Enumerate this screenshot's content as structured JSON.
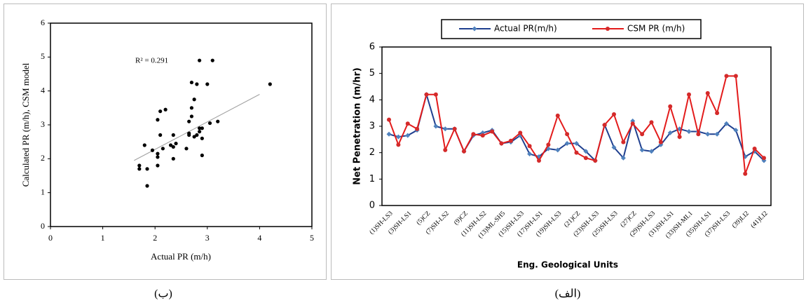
{
  "chart_data": [
    {
      "type": "scatter",
      "caption": "(ب)",
      "xlabel": "Actual PR (m/h)",
      "ylabel": "Calculated PR (m/h), CSM model",
      "annotation": "R² = 0.291",
      "color": "#000000",
      "x": [
        2.7,
        2.6,
        2.65,
        2.85,
        4.2,
        3.0,
        2.9,
        2.9,
        2.05,
        2.65,
        2.75,
        2.85,
        2.35,
        2.4,
        2.65,
        1.95,
        1.85,
        2.15,
        2.1,
        2.35,
        2.35,
        2.05,
        1.7,
        3.05,
        2.2,
        1.8,
        3.2,
        2.1,
        2.05,
        2.3,
        2.75,
        2.9,
        2.8,
        2.8,
        2.7,
        2.7,
        3.1,
        2.85,
        1.85,
        2.05,
        1.7
      ],
      "y": [
        3.25,
        2.3,
        3.1,
        2.9,
        4.2,
        4.2,
        2.1,
        2.9,
        2.05,
        2.7,
        2.65,
        2.8,
        2.35,
        2.45,
        2.75,
        2.25,
        1.7,
        2.3,
        3.4,
        2.7,
        2.0,
        1.8,
        1.7,
        3.05,
        3.45,
        2.4,
        3.1,
        2.7,
        3.15,
        2.4,
        3.75,
        2.6,
        4.2,
        2.7,
        4.25,
        3.5,
        4.9,
        4.9,
        1.2,
        2.15,
        1.8
      ],
      "trendline": {
        "color": "#a0a0a0",
        "x": [
          1.6,
          4.0
        ],
        "y": [
          1.95,
          3.9
        ]
      },
      "xlim": [
        0,
        5
      ],
      "xticks": [
        0,
        1,
        2,
        3,
        4,
        5
      ],
      "ylim": [
        0,
        6
      ],
      "yticks": [
        0,
        1,
        2,
        3,
        4,
        5,
        6
      ]
    },
    {
      "type": "line",
      "caption": "(الف)",
      "xlabel": "Eng. Geological Units",
      "ylabel": "Net Penetration (m/hr)",
      "categories": [
        "(1)SH-LS3",
        null,
        "(3)SH-LS1",
        null,
        "(5)CZ",
        null,
        "(7)SH-LS2",
        null,
        "(9)CZ",
        null,
        "(11)SH-LS2",
        null,
        "(13)ML-SH5",
        null,
        "(15)SH-LS3",
        null,
        "(17)SH-LS1",
        null,
        "(19)SH-LS3",
        null,
        "(21)CZ",
        null,
        "(23)SH-LS3",
        null,
        "(25)SH-LS3",
        null,
        "(27)CZ",
        null,
        "(29)SH-LS3",
        null,
        "(31)SH-LS1",
        null,
        "(33)SH-ML1",
        null,
        "(35)SH-LS1",
        null,
        "(37)SH-LS3",
        null,
        "(39)LI2",
        null,
        "(41)LI2"
      ],
      "series": [
        {
          "name": "Actual PR(m/h)",
          "color": "#1f3f8f",
          "marker_color": "#4f81bd",
          "values": [
            2.7,
            2.6,
            2.65,
            2.85,
            4.2,
            3.0,
            2.9,
            2.9,
            2.05,
            2.65,
            2.75,
            2.85,
            2.35,
            2.4,
            2.65,
            1.95,
            1.85,
            2.15,
            2.1,
            2.35,
            2.35,
            2.05,
            1.7,
            3.05,
            2.2,
            1.8,
            3.2,
            2.1,
            2.05,
            2.3,
            2.75,
            2.9,
            2.8,
            2.8,
            2.7,
            2.7,
            3.1,
            2.85,
            1.85,
            2.05,
            1.7
          ]
        },
        {
          "name": "CSM PR (m/h)",
          "color": "#e31b1b",
          "marker_color": "#d42a2a",
          "values": [
            3.25,
            2.3,
            3.1,
            2.9,
            4.2,
            4.2,
            2.1,
            2.9,
            2.05,
            2.7,
            2.65,
            2.8,
            2.35,
            2.45,
            2.75,
            2.25,
            1.7,
            2.3,
            3.4,
            2.7,
            2.0,
            1.8,
            1.7,
            3.05,
            3.45,
            2.4,
            3.1,
            2.7,
            3.15,
            2.4,
            3.75,
            2.6,
            4.2,
            2.7,
            4.25,
            3.5,
            4.9,
            4.9,
            1.2,
            2.15,
            1.8
          ]
        }
      ],
      "ylim": [
        0,
        6
      ],
      "yticks": [
        0,
        1,
        2,
        3,
        4,
        5,
        6
      ]
    }
  ]
}
